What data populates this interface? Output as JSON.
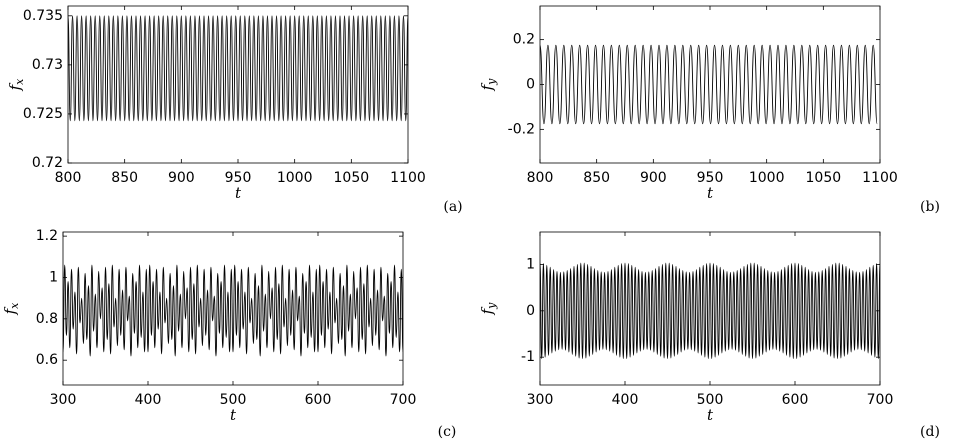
{
  "chart_data": [
    {
      "type": "line",
      "panel_label": "(a)",
      "xlabel": "t",
      "ylabel": "f",
      "ylabel_subscript": "x",
      "color": "#000000",
      "xlim": [
        800,
        1100
      ],
      "xticks": [
        800,
        850,
        900,
        950,
        1000,
        1050,
        1100
      ],
      "ylim": [
        0.72,
        0.736
      ],
      "yticks": [
        0.72,
        0.725,
        0.73,
        0.735
      ],
      "x": [
        800,
        802,
        804,
        806,
        808,
        810,
        812,
        814,
        816,
        818,
        820,
        822,
        824,
        826,
        828,
        830,
        832,
        834,
        836,
        838,
        840,
        842,
        844,
        846,
        848,
        850,
        852,
        854,
        856,
        858,
        860,
        862,
        864,
        866,
        868,
        870,
        872,
        874,
        876,
        878,
        880,
        882,
        884,
        886,
        888,
        890,
        892,
        894,
        896,
        898,
        900,
        902,
        904,
        906,
        908,
        910,
        912,
        914,
        916,
        918,
        920,
        922,
        924,
        926,
        928,
        930,
        932,
        934,
        936,
        938,
        940,
        942,
        944,
        946,
        948,
        950,
        952,
        954,
        956,
        958,
        960,
        962,
        964,
        966,
        968,
        970,
        972,
        974,
        976,
        978,
        980,
        982,
        984,
        986,
        988,
        990,
        992,
        994,
        996,
        998,
        1000,
        1002,
        1004,
        1006,
        1008,
        1010,
        1012,
        1014,
        1016,
        1018,
        1020,
        1022,
        1024,
        1026,
        1028,
        1030,
        1032,
        1034,
        1036,
        1038,
        1040,
        1042,
        1044,
        1046,
        1048,
        1050,
        1052,
        1054,
        1056,
        1058,
        1060,
        1062,
        1064,
        1066,
        1068,
        1070,
        1072,
        1074,
        1076,
        1078,
        1080,
        1082,
        1084,
        1086,
        1088,
        1090,
        1092,
        1094,
        1096,
        1098,
        1100
      ],
      "values": [
        0.735,
        0.7243,
        0.735,
        0.7243,
        0.735,
        0.7243,
        0.735,
        0.7243,
        0.735,
        0.7243,
        0.735,
        0.7243,
        0.735,
        0.7243,
        0.735,
        0.7243,
        0.735,
        0.7243,
        0.735,
        0.7243,
        0.735,
        0.7243,
        0.735,
        0.7243,
        0.735,
        0.7243,
        0.735,
        0.7243,
        0.735,
        0.7243,
        0.735,
        0.7243,
        0.735,
        0.7243,
        0.735,
        0.7243,
        0.735,
        0.7243,
        0.735,
        0.7243,
        0.735,
        0.7243,
        0.735,
        0.7243,
        0.735,
        0.7243,
        0.735,
        0.7243,
        0.735,
        0.7243,
        0.735,
        0.7243,
        0.735,
        0.7243,
        0.735,
        0.7243,
        0.735,
        0.7243,
        0.735,
        0.7243,
        0.735,
        0.7243,
        0.735,
        0.7243,
        0.735,
        0.7243,
        0.735,
        0.7243,
        0.735,
        0.7243,
        0.735,
        0.7243,
        0.735,
        0.7243,
        0.735,
        0.7243,
        0.735,
        0.7243,
        0.735,
        0.7243,
        0.735,
        0.7243,
        0.735,
        0.7243,
        0.735,
        0.7243,
        0.735,
        0.7243,
        0.735,
        0.7243,
        0.735,
        0.7243,
        0.735,
        0.7243,
        0.735,
        0.7243,
        0.735,
        0.7243,
        0.735,
        0.7243,
        0.735,
        0.7243,
        0.735,
        0.7243,
        0.735,
        0.7243,
        0.735,
        0.7243,
        0.735,
        0.7243,
        0.735,
        0.7243,
        0.735,
        0.7243,
        0.735,
        0.7243,
        0.735,
        0.7243,
        0.735,
        0.7243,
        0.735,
        0.7243,
        0.735,
        0.7243,
        0.735,
        0.7243,
        0.735,
        0.7243,
        0.735,
        0.7243,
        0.735,
        0.7243,
        0.735,
        0.7243,
        0.735,
        0.7243,
        0.735,
        0.7243,
        0.735,
        0.7243,
        0.735,
        0.7243,
        0.735,
        0.7243,
        0.735,
        0.7243,
        0.735,
        0.7243,
        0.735,
        0.7243,
        0.735
      ]
    },
    {
      "type": "line",
      "panel_label": "(b)",
      "xlabel": "t",
      "ylabel": "f",
      "ylabel_subscript": "y",
      "color": "#000000",
      "xlim": [
        800,
        1100
      ],
      "xticks": [
        800,
        850,
        900,
        950,
        1000,
        1050,
        1100
      ],
      "ylim": [
        -0.35,
        0.35
      ],
      "yticks": [
        -0.2,
        0,
        0.2
      ],
      "x": [
        800,
        803.5,
        807,
        810.5,
        814,
        817.5,
        821,
        824.5,
        828,
        831.5,
        835,
        838.5,
        842,
        845.5,
        849,
        852.5,
        856,
        859.5,
        863,
        866.5,
        870,
        873.5,
        877,
        880.5,
        884,
        887.5,
        891,
        894.5,
        898,
        901.5,
        905,
        908.5,
        912,
        915.5,
        919,
        922.5,
        926,
        929.5,
        933,
        936.5,
        940,
        943.5,
        947,
        950.5,
        954,
        957.5,
        961,
        964.5,
        968,
        971.5,
        975,
        978.5,
        982,
        985.5,
        989,
        992.5,
        996,
        999.5,
        1003,
        1006.5,
        1010,
        1013.5,
        1017,
        1020.5,
        1024,
        1027.5,
        1031,
        1034.5,
        1038,
        1041.5,
        1045,
        1048.5,
        1052,
        1055.5,
        1059,
        1062.5,
        1066,
        1069.5,
        1073,
        1076.5,
        1080,
        1083.5,
        1087,
        1090.5,
        1094,
        1097.5
      ],
      "values": [
        0.175,
        -0.175,
        0.175,
        -0.175,
        0.175,
        -0.175,
        0.175,
        -0.175,
        0.175,
        -0.175,
        0.175,
        -0.175,
        0.175,
        -0.175,
        0.175,
        -0.175,
        0.175,
        -0.175,
        0.175,
        -0.175,
        0.175,
        -0.175,
        0.175,
        -0.175,
        0.175,
        -0.175,
        0.175,
        -0.175,
        0.175,
        -0.175,
        0.175,
        -0.175,
        0.175,
        -0.175,
        0.175,
        -0.175,
        0.175,
        -0.175,
        0.175,
        -0.175,
        0.175,
        -0.175,
        0.175,
        -0.175,
        0.175,
        -0.175,
        0.175,
        -0.175,
        0.175,
        -0.175,
        0.175,
        -0.175,
        0.175,
        -0.175,
        0.175,
        -0.175,
        0.175,
        -0.175,
        0.175,
        -0.175,
        0.175,
        -0.175,
        0.175,
        -0.175,
        0.175,
        -0.175,
        0.175,
        -0.175,
        0.175,
        -0.175,
        0.175,
        -0.175,
        0.175,
        -0.175,
        0.175,
        -0.175,
        0.175,
        -0.175,
        0.175,
        -0.175,
        0.175,
        -0.175,
        0.175,
        -0.175,
        0.175,
        -0.175
      ]
    },
    {
      "type": "line",
      "panel_label": "(c)",
      "xlabel": "t",
      "ylabel": "f",
      "ylabel_subscript": "x",
      "color": "#000000",
      "xlim": [
        300,
        700
      ],
      "xticks": [
        300,
        400,
        500,
        600,
        700
      ],
      "ylim": [
        0.48,
        1.22
      ],
      "yticks": [
        0.6,
        0.8,
        1,
        1.2
      ],
      "x": [
        300,
        302,
        304,
        306,
        308,
        310,
        312,
        314,
        316,
        318,
        320,
        322,
        324,
        326,
        328,
        330,
        332,
        334,
        336,
        338,
        340,
        342,
        344,
        346,
        348,
        350,
        352,
        354,
        356,
        358,
        360,
        362,
        364,
        366,
        368,
        370,
        372,
        374,
        376,
        378,
        380,
        382,
        384,
        386,
        388,
        390,
        392,
        394,
        396,
        398,
        400,
        402,
        404,
        406,
        408,
        410,
        412,
        414,
        416,
        418,
        420,
        422,
        424,
        426,
        428,
        430,
        432,
        434,
        436,
        438,
        440,
        442,
        444,
        446,
        448,
        450,
        452,
        454,
        456,
        458,
        460,
        462,
        464,
        466,
        468,
        470,
        472,
        474,
        476,
        478,
        480,
        482,
        484,
        486,
        488,
        490,
        492,
        494,
        496,
        498,
        500,
        502,
        504,
        506,
        508,
        510,
        512,
        514,
        516,
        518,
        520,
        522,
        524,
        526,
        528,
        530,
        532,
        534,
        536,
        538,
        540,
        542,
        544,
        546,
        548,
        550,
        552,
        554,
        556,
        558,
        560,
        562,
        564,
        566,
        568,
        570,
        572,
        574,
        576,
        578,
        580,
        582,
        584,
        586,
        588,
        590,
        592,
        594,
        596,
        598,
        600,
        602,
        604,
        606,
        608,
        610,
        612,
        614,
        616,
        618,
        620,
        622,
        624,
        626,
        628,
        630,
        632,
        634,
        636,
        638,
        640,
        642,
        644,
        646,
        648,
        650,
        652,
        654,
        656,
        658,
        660,
        662,
        664,
        666,
        668,
        670,
        672,
        674,
        676,
        678,
        680,
        682,
        684,
        686,
        688,
        690,
        692,
        694,
        696,
        698,
        700
      ],
      "values": [
        0.64,
        1.06,
        0.72,
        0.98,
        0.66,
        1.04,
        0.75,
        0.93,
        0.63,
        1.05,
        0.78,
        0.9,
        0.68,
        1.02,
        0.7,
        0.96,
        0.62,
        1.06,
        0.74,
        0.92,
        0.66,
        1.03,
        0.8,
        0.95,
        0.64,
        1.05,
        0.7,
        0.97,
        0.63,
        1.06,
        0.76,
        0.9,
        0.67,
        1.04,
        0.72,
        0.94,
        0.65,
        1.05,
        0.79,
        0.91,
        0.62,
        1.02,
        0.73,
        0.98,
        0.66,
        1.06,
        0.71,
        0.93,
        0.64,
        1.04,
        0.64,
        1.06,
        0.72,
        0.98,
        0.66,
        1.04,
        0.75,
        0.93,
        0.63,
        1.05,
        0.78,
        0.9,
        0.68,
        1.02,
        0.7,
        0.96,
        0.62,
        1.06,
        0.74,
        0.92,
        0.66,
        1.03,
        0.8,
        0.95,
        0.64,
        1.05,
        0.7,
        0.97,
        0.63,
        1.06,
        0.76,
        0.9,
        0.67,
        1.04,
        0.72,
        0.94,
        0.65,
        1.05,
        0.79,
        0.91,
        0.62,
        1.02,
        0.73,
        0.98,
        0.66,
        1.06,
        0.71,
        0.93,
        0.64,
        1.04,
        0.64,
        1.06,
        0.72,
        0.98,
        0.66,
        1.04,
        0.75,
        0.93,
        0.63,
        1.05,
        0.78,
        0.9,
        0.68,
        1.02,
        0.7,
        0.96,
        0.62,
        1.06,
        0.74,
        0.92,
        0.66,
        1.03,
        0.8,
        0.95,
        0.64,
        1.05,
        0.7,
        0.97,
        0.63,
        1.06,
        0.76,
        0.9,
        0.67,
        1.04,
        0.72,
        0.94,
        0.65,
        1.05,
        0.79,
        0.91,
        0.62,
        1.02,
        0.73,
        0.98,
        0.66,
        1.06,
        0.71,
        0.93,
        0.64,
        1.04,
        0.64,
        1.06,
        0.72,
        0.98,
        0.66,
        1.04,
        0.75,
        0.93,
        0.63,
        1.05,
        0.78,
        0.9,
        0.68,
        1.02,
        0.7,
        0.96,
        0.62,
        1.06,
        0.74,
        0.92,
        0.66,
        1.03,
        0.8,
        0.95,
        0.64,
        1.05,
        0.7,
        0.97,
        0.63,
        1.06,
        0.76,
        0.9,
        0.67,
        1.04,
        0.72,
        0.94,
        0.65,
        1.05,
        0.79,
        0.91,
        0.62,
        1.02,
        0.73,
        0.98,
        0.66,
        1.06,
        0.71,
        0.93,
        0.64,
        1.04,
        0.64
      ]
    },
    {
      "type": "line",
      "panel_label": "(d)",
      "xlabel": "t",
      "ylabel": "f",
      "ylabel_subscript": "y",
      "color": "#000000",
      "xlim": [
        300,
        700
      ],
      "xticks": [
        300,
        400,
        500,
        600,
        700
      ],
      "ylim": [
        -1.6,
        1.7
      ],
      "yticks": [
        -1,
        0,
        1
      ],
      "x": [
        300,
        302,
        304,
        306,
        308,
        310,
        312,
        314,
        316,
        318,
        320,
        322,
        324,
        326,
        328,
        330,
        332,
        334,
        336,
        338,
        340,
        342,
        344,
        346,
        348,
        350,
        352,
        354,
        356,
        358,
        360,
        362,
        364,
        366,
        368,
        370,
        372,
        374,
        376,
        378,
        380,
        382,
        384,
        386,
        388,
        390,
        392,
        394,
        396,
        398,
        400,
        402,
        404,
        406,
        408,
        410,
        412,
        414,
        416,
        418,
        420,
        422,
        424,
        426,
        428,
        430,
        432,
        434,
        436,
        438,
        440,
        442,
        444,
        446,
        448,
        450,
        452,
        454,
        456,
        458,
        460,
        462,
        464,
        466,
        468,
        470,
        472,
        474,
        476,
        478,
        480,
        482,
        484,
        486,
        488,
        490,
        492,
        494,
        496,
        498,
        500,
        502,
        504,
        506,
        508,
        510,
        512,
        514,
        516,
        518,
        520,
        522,
        524,
        526,
        528,
        530,
        532,
        534,
        536,
        538,
        540,
        542,
        544,
        546,
        548,
        550,
        552,
        554,
        556,
        558,
        560,
        562,
        564,
        566,
        568,
        570,
        572,
        574,
        576,
        578,
        580,
        582,
        584,
        586,
        588,
        590,
        592,
        594,
        596,
        598,
        600,
        602,
        604,
        606,
        608,
        610,
        612,
        614,
        616,
        618,
        620,
        622,
        624,
        626,
        628,
        630,
        632,
        634,
        636,
        638,
        640,
        642,
        644,
        646,
        648,
        650,
        652,
        654,
        656,
        658,
        660,
        662,
        664,
        666,
        668,
        670,
        672,
        674,
        676,
        678,
        680,
        682,
        684,
        686,
        688,
        690,
        692,
        694,
        696,
        698,
        700
      ],
      "values": [
        1.03,
        -1.03,
        1.02,
        -1.0,
        0.98,
        -0.96,
        0.94,
        -0.91,
        0.89,
        -0.87,
        0.85,
        -0.84,
        0.83,
        -0.83,
        0.84,
        -0.85,
        0.87,
        -0.89,
        0.91,
        -0.94,
        0.96,
        -0.98,
        1.0,
        -1.02,
        1.03,
        -1.03,
        1.03,
        -1.02,
        1.0,
        -0.98,
        0.96,
        -0.94,
        0.91,
        -0.89,
        0.87,
        -0.85,
        0.84,
        -0.83,
        0.83,
        -0.84,
        0.85,
        -0.87,
        0.89,
        -0.91,
        0.94,
        -0.96,
        0.98,
        -1.0,
        1.02,
        -1.03,
        1.03,
        -1.03,
        1.02,
        -1.0,
        0.98,
        -0.96,
        0.94,
        -0.91,
        0.89,
        -0.87,
        0.85,
        -0.84,
        0.83,
        -0.83,
        0.84,
        -0.85,
        0.87,
        -0.89,
        0.91,
        -0.94,
        0.96,
        -0.98,
        1.0,
        -1.02,
        1.03,
        -1.03,
        1.03,
        -1.02,
        1.0,
        -0.98,
        0.96,
        -0.94,
        0.91,
        -0.89,
        0.87,
        -0.85,
        0.84,
        -0.83,
        0.83,
        -0.84,
        0.85,
        -0.87,
        0.89,
        -0.91,
        0.94,
        -0.96,
        0.98,
        -1.0,
        1.02,
        -1.03,
        1.03,
        -1.03,
        1.02,
        -1.0,
        0.98,
        -0.96,
        0.94,
        -0.91,
        0.89,
        -0.87,
        0.85,
        -0.84,
        0.83,
        -0.83,
        0.84,
        -0.85,
        0.87,
        -0.89,
        0.91,
        -0.94,
        0.96,
        -0.98,
        1.0,
        -1.02,
        1.03,
        -1.03,
        1.03,
        -1.02,
        1.0,
        -0.98,
        0.96,
        -0.94,
        0.91,
        -0.89,
        0.87,
        -0.85,
        0.84,
        -0.83,
        0.83,
        -0.84,
        0.85,
        -0.87,
        0.89,
        -0.91,
        0.94,
        -0.96,
        0.98,
        -1.0,
        1.02,
        -1.03,
        1.03,
        -1.03,
        1.02,
        -1.0,
        0.98,
        -0.96,
        0.94,
        -0.91,
        0.89,
        -0.87,
        0.85,
        -0.84,
        0.83,
        -0.83,
        0.84,
        -0.85,
        0.87,
        -0.89,
        0.91,
        -0.94,
        0.96,
        -0.98,
        1.0,
        -1.02,
        1.03,
        -1.03,
        1.03,
        -1.02,
        1.0,
        -0.98,
        0.96,
        -0.94,
        0.91,
        -0.89,
        0.87,
        -0.85,
        0.84,
        -0.83,
        0.83,
        -0.84,
        0.85,
        -0.87,
        0.89,
        -0.91,
        0.94,
        -0.96,
        0.98,
        -1.0,
        1.02,
        -1.03,
        1.03
      ]
    }
  ]
}
